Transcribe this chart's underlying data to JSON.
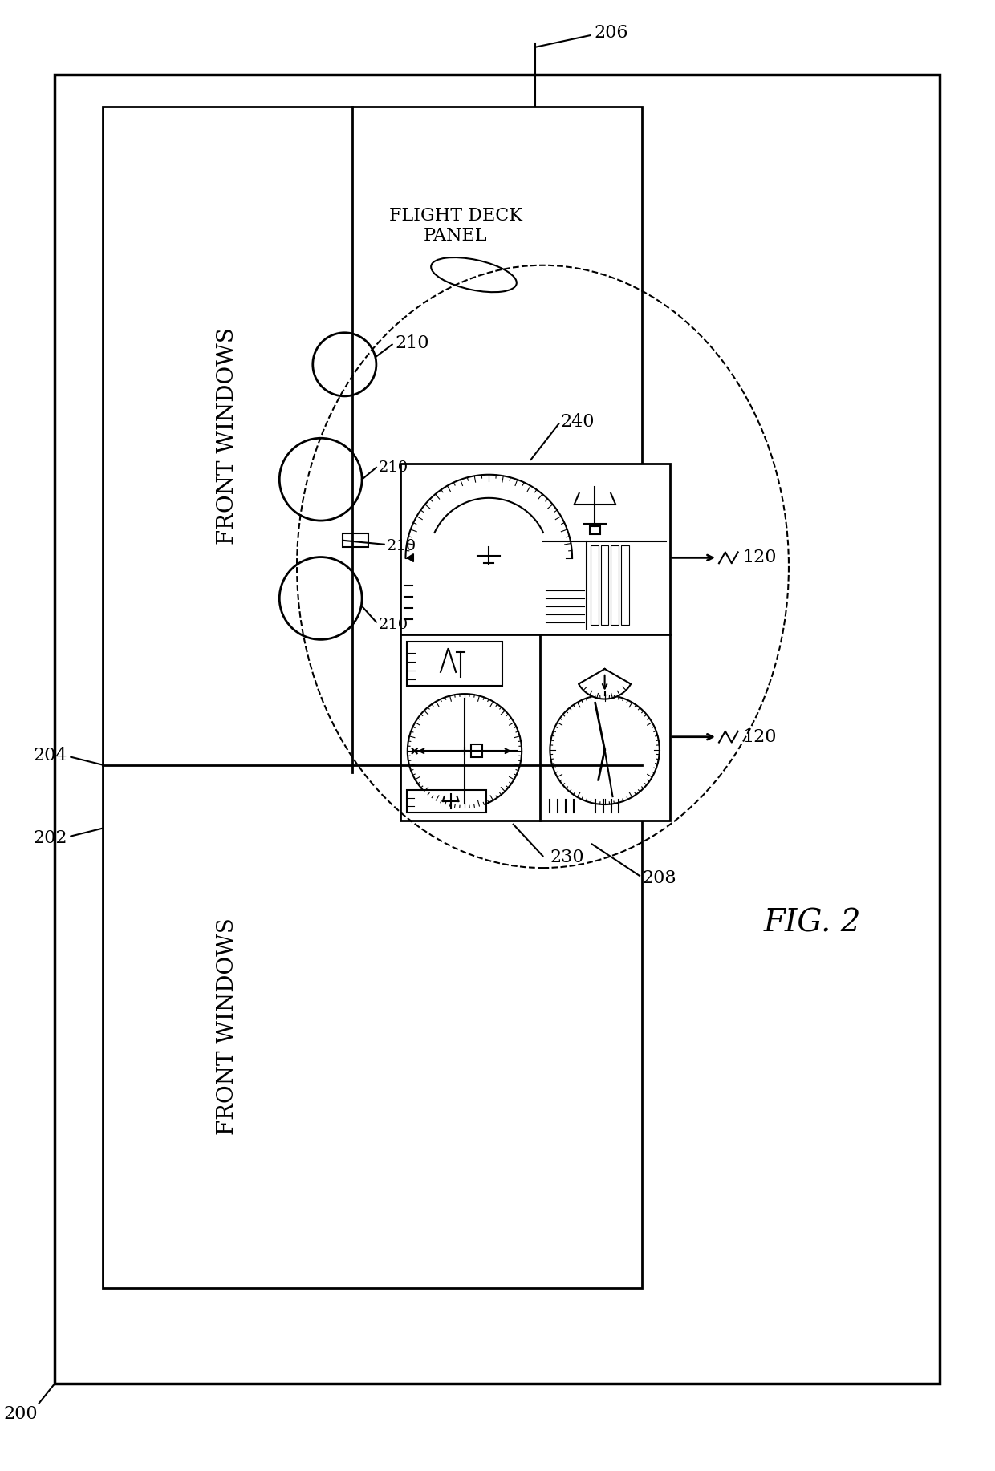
{
  "bg_color": "#ffffff",
  "line_color": "#000000",
  "fig_label": "FIG. 2",
  "label_200": "200",
  "label_202": "202",
  "label_204": "204",
  "label_206": "206",
  "label_208": "208",
  "label_210": "210",
  "label_120": "120",
  "label_230": "230",
  "label_240": "240",
  "label_front_windows": "FRONT WINDOWS",
  "label_flight_deck": "FLIGHT DECK\nPANEL"
}
